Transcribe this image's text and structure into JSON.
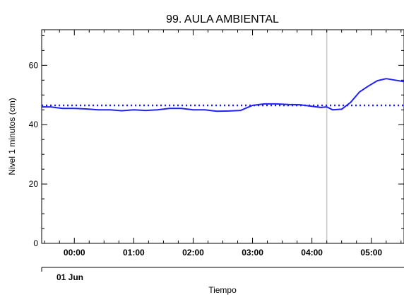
{
  "chart_data": {
    "type": "line",
    "title": "99. AULA AMBIENTAL",
    "xlabel": "Tiempo",
    "ylabel": "Nivel 1 minutos (cm)",
    "date_label": "01 Jun",
    "xlim": [
      -0.55,
      5.55
    ],
    "ylim": [
      0,
      72
    ],
    "x_unit": "hours since 01 Jun 00:00",
    "x_ticks": [
      {
        "value": 0,
        "label": "00:00"
      },
      {
        "value": 1,
        "label": "01:00"
      },
      {
        "value": 2,
        "label": "02:00"
      },
      {
        "value": 3,
        "label": "03:00"
      },
      {
        "value": 4,
        "label": "04:00"
      },
      {
        "value": 5,
        "label": "05:00"
      }
    ],
    "y_ticks": [
      {
        "value": 0,
        "label": "0"
      },
      {
        "value": 20,
        "label": "20"
      },
      {
        "value": 40,
        "label": "40"
      },
      {
        "value": 60,
        "label": "60"
      }
    ],
    "grid": false,
    "reference_line": {
      "y": 46.5,
      "style": "dotted",
      "color": "#1a1aff"
    },
    "marker_line": {
      "x": 4.25,
      "color": "#c8c8c8"
    },
    "series": [
      {
        "color": "#2020ff",
        "x": [
          -0.55,
          -0.4,
          -0.2,
          0.0,
          0.2,
          0.4,
          0.6,
          0.8,
          1.0,
          1.2,
          1.4,
          1.6,
          1.8,
          2.0,
          2.2,
          2.4,
          2.6,
          2.8,
          3.0,
          3.2,
          3.4,
          3.6,
          3.8,
          4.0,
          4.15,
          4.25,
          4.35,
          4.5,
          4.65,
          4.8,
          4.95,
          5.1,
          5.25,
          5.4,
          5.55
        ],
        "y": [
          46.0,
          46.0,
          45.5,
          45.5,
          45.3,
          45.0,
          45.0,
          44.7,
          45.0,
          44.8,
          45.0,
          45.5,
          45.5,
          45.0,
          45.0,
          44.5,
          44.6,
          44.8,
          46.5,
          47.0,
          47.0,
          46.8,
          46.7,
          46.2,
          45.8,
          46.0,
          45.0,
          45.2,
          47.5,
          51.0,
          53.0,
          54.8,
          55.5,
          55.0,
          54.5
        ]
      }
    ]
  }
}
